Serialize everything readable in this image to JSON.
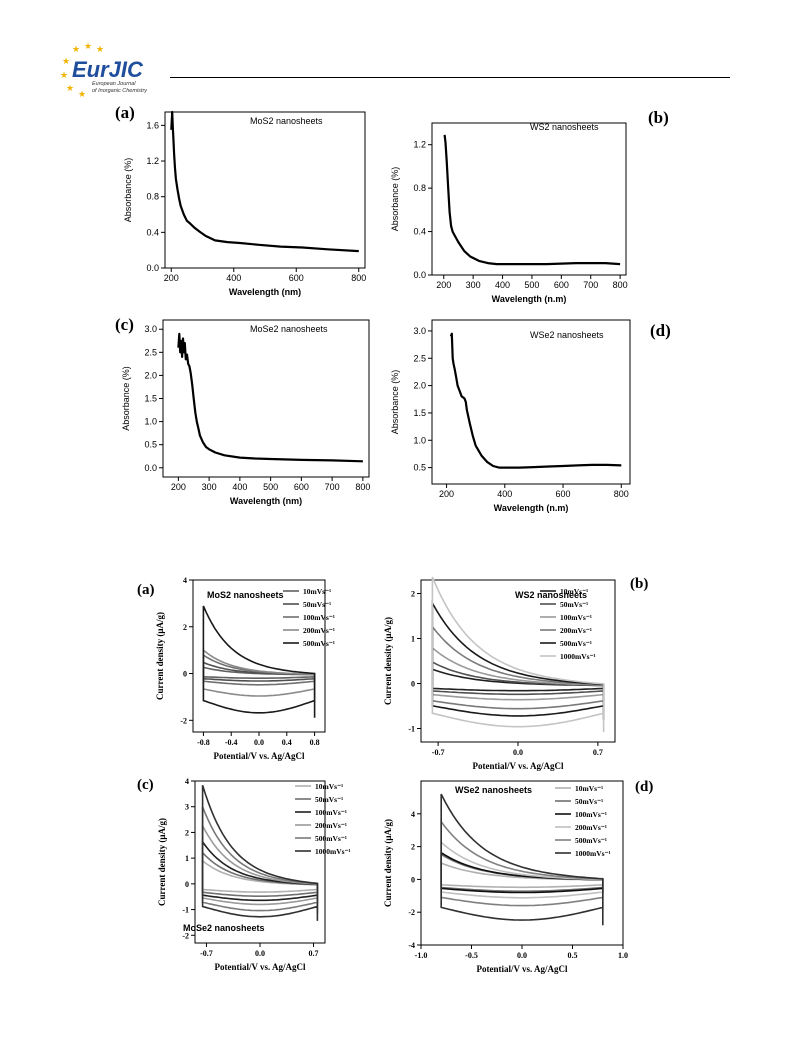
{
  "header": {
    "logo_text": "EurJIC",
    "logo_subtitle_1": "European Journal",
    "logo_subtitle_2": "of Inorganic Chemistry"
  },
  "colors": {
    "star": "#f2b400",
    "logo_blue": "#1f4e9c",
    "logo_orange": "#e06a1a"
  },
  "chart_data": [
    {
      "type": "line",
      "panel_label": "(a)",
      "annotation": "MoS2 nanosheets",
      "xlabel": "Wavelength (nm)",
      "ylabel": "Absorbance (%)",
      "xlim": [
        180,
        820
      ],
      "ylim": [
        0,
        1.75
      ],
      "xticks": [
        200,
        400,
        600,
        800
      ],
      "yticks": [
        0.0,
        0.4,
        0.8,
        1.2,
        1.6
      ],
      "series": [
        {
          "x": [
            200,
            203,
            205,
            207,
            209,
            212,
            215,
            220,
            225,
            230,
            240,
            250,
            260,
            275,
            290,
            310,
            340,
            380,
            420,
            480,
            550,
            620,
            700,
            800
          ],
          "y": [
            1.55,
            1.75,
            1.58,
            1.45,
            1.28,
            1.12,
            1.0,
            0.88,
            0.78,
            0.7,
            0.6,
            0.53,
            0.5,
            0.45,
            0.41,
            0.36,
            0.31,
            0.29,
            0.28,
            0.26,
            0.24,
            0.23,
            0.21,
            0.19
          ]
        }
      ]
    },
    {
      "type": "line",
      "panel_label": "(b)",
      "annotation": "WS2 nanosheets",
      "xlabel": "Wavelength (n.m)",
      "ylabel": "Absorbance (%)",
      "xlim": [
        160,
        820
      ],
      "ylim": [
        0,
        1.4
      ],
      "xticks": [
        200,
        300,
        400,
        500,
        600,
        700,
        800
      ],
      "yticks": [
        0.0,
        0.4,
        0.8,
        1.2
      ],
      "series": [
        {
          "x": [
            203,
            206,
            210,
            215,
            220,
            225,
            230,
            240,
            250,
            270,
            290,
            320,
            350,
            380,
            450,
            550,
            650,
            750,
            800
          ],
          "y": [
            1.29,
            1.22,
            1.05,
            0.8,
            0.58,
            0.45,
            0.4,
            0.35,
            0.3,
            0.22,
            0.17,
            0.13,
            0.11,
            0.1,
            0.1,
            0.1,
            0.11,
            0.11,
            0.1
          ]
        }
      ]
    },
    {
      "type": "line",
      "panel_label": "(c)",
      "annotation": "MoSe2 nanosheets",
      "xlabel": "Wavelength (nm)",
      "ylabel": "Absorbance (%)",
      "xlim": [
        150,
        820
      ],
      "ylim": [
        -0.2,
        3.2
      ],
      "xticks": [
        200,
        300,
        400,
        500,
        600,
        700,
        800
      ],
      "yticks": [
        0.0,
        0.5,
        1.0,
        1.5,
        2.0,
        2.5,
        3.0
      ],
      "series": [
        {
          "x": [
            200,
            203,
            206,
            209,
            212,
            215,
            218,
            221,
            224,
            228,
            232,
            236,
            240,
            245,
            250,
            255,
            260,
            265,
            270,
            280,
            290,
            300,
            320,
            350,
            400,
            450,
            500,
            600,
            700,
            800
          ],
          "y": [
            2.6,
            2.9,
            2.5,
            2.75,
            2.4,
            2.8,
            2.5,
            2.7,
            2.35,
            2.45,
            2.25,
            2.2,
            2.05,
            1.8,
            1.5,
            1.2,
            1.0,
            0.85,
            0.7,
            0.55,
            0.45,
            0.4,
            0.33,
            0.27,
            0.22,
            0.2,
            0.19,
            0.17,
            0.16,
            0.14
          ]
        }
      ]
    },
    {
      "type": "line",
      "panel_label": "(d)",
      "annotation": "WSe2 nanosheets",
      "xlabel": "Wavelength (n.m)",
      "ylabel": "Absorbance (%)",
      "xlim": [
        150,
        830
      ],
      "ylim": [
        0.2,
        3.2
      ],
      "xticks": [
        200,
        400,
        600,
        800
      ],
      "yticks": [
        0.5,
        1.0,
        1.5,
        2.0,
        2.5,
        3.0
      ],
      "series": [
        {
          "x": [
            215,
            218,
            221,
            224,
            228,
            233,
            238,
            245,
            252,
            258,
            262,
            266,
            270,
            280,
            290,
            300,
            320,
            340,
            360,
            380,
            400,
            450,
            500,
            550,
            600,
            650,
            700,
            750,
            800
          ],
          "y": [
            2.9,
            2.95,
            2.5,
            2.4,
            2.3,
            2.15,
            2.0,
            1.9,
            1.8,
            1.78,
            1.76,
            1.7,
            1.55,
            1.3,
            1.08,
            0.9,
            0.72,
            0.6,
            0.53,
            0.5,
            0.5,
            0.5,
            0.51,
            0.52,
            0.53,
            0.54,
            0.55,
            0.55,
            0.54
          ]
        }
      ]
    },
    {
      "type": "line",
      "panel_label": "(a)",
      "annotation": "MoS2 nanosheets",
      "xlabel": "Potential/V vs. Ag/AgCl",
      "ylabel": "Current density (μA/g)",
      "xlim": [
        -0.95,
        0.95
      ],
      "ylim": [
        -2.5,
        4
      ],
      "xticks": [
        -0.8,
        -0.4,
        0.0,
        0.4,
        0.8
      ],
      "yticks": [
        -2,
        0,
        2,
        4
      ],
      "legend": [
        "10mVs⁻¹",
        "50mVs⁻¹",
        "100mVs⁻¹",
        "200mVs⁻¹",
        "500mVs⁻¹"
      ],
      "series": [
        {
          "name": "10mVs⁻¹",
          "x0": -0.8,
          "x1": 0.8,
          "peak": 0.3,
          "low": -0.25,
          "color": "#606060"
        },
        {
          "name": "50mVs⁻¹",
          "x0": -0.8,
          "x1": 0.8,
          "peak": 0.5,
          "low": -0.4,
          "color": "#505050"
        },
        {
          "name": "100mVs⁻¹",
          "x0": -0.8,
          "x1": 0.8,
          "peak": 0.8,
          "low": -0.6,
          "color": "#707070"
        },
        {
          "name": "200mVs⁻¹",
          "x0": -0.8,
          "x1": 0.8,
          "peak": 1.0,
          "low": -1.2,
          "color": "#8a8a8a"
        },
        {
          "name": "500mVs⁻¹",
          "x0": -0.8,
          "x1": 0.8,
          "peak": 2.8,
          "low": -2.1,
          "color": "#1a1a1a"
        }
      ]
    },
    {
      "type": "line",
      "panel_label": "(b)",
      "annotation": "WS2 nanosheets",
      "xlabel": "Potential/V vs. Ag/AgCl",
      "ylabel": "Current density (μA/g)",
      "xlim": [
        -0.85,
        0.85
      ],
      "ylim": [
        -1.3,
        2.3
      ],
      "xticks": [
        -0.7,
        0.0,
        0.7
      ],
      "yticks": [
        -1,
        0,
        1,
        2
      ],
      "legend": [
        "10mVs⁻¹",
        "50mVs⁻¹",
        "100mVs⁻¹",
        "200mVs⁻¹",
        "500mVs⁻¹",
        "1000mVs⁻¹"
      ],
      "series": [
        {
          "name": "10mVs⁻¹",
          "x0": -0.75,
          "x1": 0.75,
          "peak": 0.35,
          "low": -0.2,
          "color": "#202020"
        },
        {
          "name": "50mVs⁻¹",
          "x0": -0.75,
          "x1": 0.75,
          "peak": 0.5,
          "low": -0.3,
          "color": "#505050"
        },
        {
          "name": "100mVs⁻¹",
          "x0": -0.75,
          "x1": 0.75,
          "peak": 0.8,
          "low": -0.45,
          "color": "#9a9a9a"
        },
        {
          "name": "200mVs⁻¹",
          "x0": -0.75,
          "x1": 0.75,
          "peak": 1.25,
          "low": -0.7,
          "color": "#7a7a7a"
        },
        {
          "name": "500mVs⁻¹",
          "x0": -0.75,
          "x1": 0.75,
          "peak": 1.75,
          "low": -0.9,
          "color": "#1a1a1a"
        },
        {
          "name": "1000mVs⁻¹",
          "x0": -0.75,
          "x1": 0.75,
          "peak": 2.3,
          "low": -1.2,
          "color": "#c4c4c4"
        }
      ]
    },
    {
      "type": "line",
      "panel_label": "(c)",
      "annotation": "MoSe2 nanosheets",
      "xlabel": "Potential/V vs. Ag/AgCl",
      "ylabel": "Current density (μA/g)",
      "xlim": [
        -0.85,
        0.85
      ],
      "ylim": [
        -2.3,
        4
      ],
      "xticks": [
        -0.7,
        0.0,
        0.7
      ],
      "yticks": [
        -2,
        -1,
        0,
        1,
        2,
        3,
        4
      ],
      "legend": [
        "10mVs⁻¹",
        "50mVs⁻¹",
        "100mVs⁻¹",
        "200mVs⁻¹",
        "500mVs⁻¹",
        "1000mVs⁻¹"
      ],
      "series": [
        {
          "name": "10mVs⁻¹",
          "x0": -0.75,
          "x1": 0.75,
          "peak": 0.9,
          "low": -0.4,
          "color": "#b0b0b0"
        },
        {
          "name": "50mVs⁻¹",
          "x0": -0.75,
          "x1": 0.75,
          "peak": 1.2,
          "low": -0.6,
          "color": "#707070"
        },
        {
          "name": "100mVs⁻¹",
          "x0": -0.75,
          "x1": 0.75,
          "peak": 1.6,
          "low": -0.8,
          "color": "#202020"
        },
        {
          "name": "200mVs⁻¹",
          "x0": -0.75,
          "x1": 0.75,
          "peak": 2.2,
          "low": -1.0,
          "color": "#9a9a9a"
        },
        {
          "name": "500mVs⁻¹",
          "x0": -0.75,
          "x1": 0.75,
          "peak": 2.9,
          "low": -1.3,
          "color": "#7a7a7a"
        },
        {
          "name": "1000mVs⁻¹",
          "x0": -0.75,
          "x1": 0.75,
          "peak": 3.7,
          "low": -1.6,
          "color": "#303030"
        }
      ]
    },
    {
      "type": "line",
      "panel_label": "(d)",
      "annotation": "WSe2 nanosheets",
      "xlabel": "Potential/V vs. Ag/AgCl",
      "ylabel": "Current density (μA/g)",
      "xlim": [
        -1.0,
        1.0
      ],
      "ylim": [
        -4,
        6
      ],
      "xticks": [
        -1.0,
        -0.5,
        0.0,
        0.5,
        1.0
      ],
      "yticks": [
        -4,
        -2,
        0,
        2,
        4
      ],
      "legend": [
        "10mVs⁻¹",
        "50mVs⁻¹",
        "100mVs⁻¹",
        "200mVs⁻¹",
        "500mVs⁻¹",
        "1000mVs⁻¹"
      ],
      "series": [
        {
          "name": "10mVs⁻¹",
          "x0": -0.8,
          "x1": 0.8,
          "peak": 1.0,
          "low": -0.6,
          "color": "#b0b0b0"
        },
        {
          "name": "50mVs⁻¹",
          "x0": -0.8,
          "x1": 0.8,
          "peak": 1.5,
          "low": -0.9,
          "color": "#707070"
        },
        {
          "name": "100mVs⁻¹",
          "x0": -0.8,
          "x1": 0.8,
          "peak": 1.6,
          "low": -1.0,
          "color": "#101010"
        },
        {
          "name": "200mVs⁻¹",
          "x0": -0.8,
          "x1": 0.8,
          "peak": 2.2,
          "low": -1.4,
          "color": "#c0c0c0"
        },
        {
          "name": "500mVs⁻¹",
          "x0": -0.8,
          "x1": 0.8,
          "peak": 3.4,
          "low": -2.0,
          "color": "#808080"
        },
        {
          "name": "1000mVs⁻¹",
          "x0": -0.8,
          "x1": 0.8,
          "peak": 5.0,
          "low": -3.1,
          "color": "#303030"
        }
      ]
    }
  ]
}
